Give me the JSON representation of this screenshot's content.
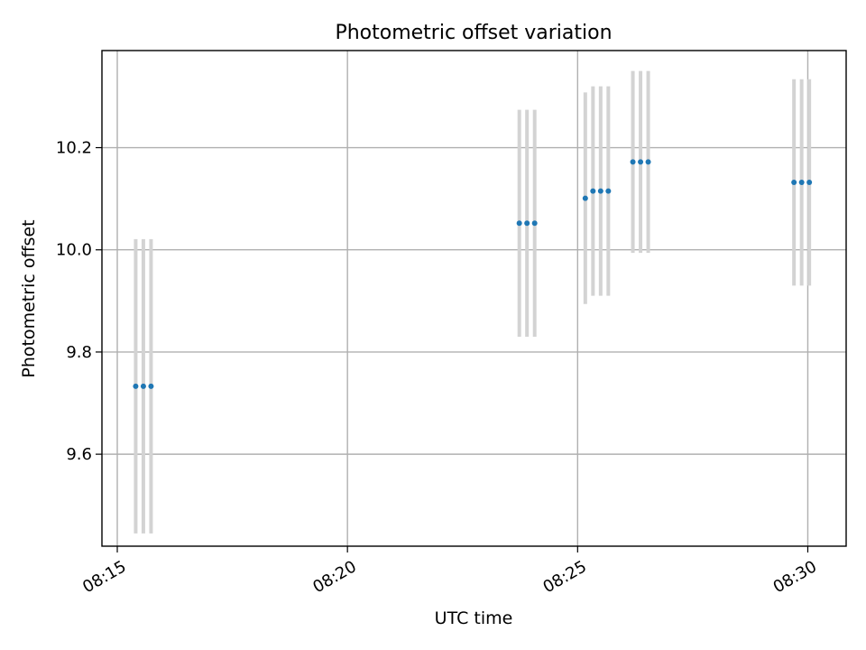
{
  "chart_data": {
    "type": "scatter",
    "title": "Photometric offset variation",
    "xlabel": "UTC time",
    "ylabel": "Photometric offset",
    "x_format": "HH:MM",
    "x_unit": "minutes",
    "xlim": [
      "08:14:40",
      "08:30:50"
    ],
    "ylim": [
      9.42,
      10.39
    ],
    "x_ticks": [
      "08:15",
      "08:20",
      "08:25",
      "08:30"
    ],
    "y_ticks": [
      9.6,
      9.8,
      10.0,
      10.2
    ],
    "grid": true,
    "colors": {
      "points": "#1f77b4",
      "error_bars": "#d3d3d3",
      "grid": "#b0b0b0"
    },
    "points": [
      {
        "x": "08:15:24",
        "y": 9.733,
        "yerr": 0.288
      },
      {
        "x": "08:15:34",
        "y": 9.733,
        "yerr": 0.288
      },
      {
        "x": "08:15:44",
        "y": 9.733,
        "yerr": 0.288
      },
      {
        "x": "08:23:44",
        "y": 10.052,
        "yerr": 0.222
      },
      {
        "x": "08:23:54",
        "y": 10.052,
        "yerr": 0.222
      },
      {
        "x": "08:24:04",
        "y": 10.052,
        "yerr": 0.222
      },
      {
        "x": "08:25:10",
        "y": 10.101,
        "yerr": 0.207
      },
      {
        "x": "08:25:20",
        "y": 10.115,
        "yerr": 0.205
      },
      {
        "x": "08:25:30",
        "y": 10.115,
        "yerr": 0.205
      },
      {
        "x": "08:25:40",
        "y": 10.115,
        "yerr": 0.205
      },
      {
        "x": "08:26:12",
        "y": 10.172,
        "yerr": 0.178
      },
      {
        "x": "08:26:22",
        "y": 10.172,
        "yerr": 0.178
      },
      {
        "x": "08:26:32",
        "y": 10.172,
        "yerr": 0.178
      },
      {
        "x": "08:29:42",
        "y": 10.132,
        "yerr": 0.202
      },
      {
        "x": "08:29:52",
        "y": 10.132,
        "yerr": 0.202
      },
      {
        "x": "08:30:02",
        "y": 10.132,
        "yerr": 0.202
      }
    ]
  }
}
